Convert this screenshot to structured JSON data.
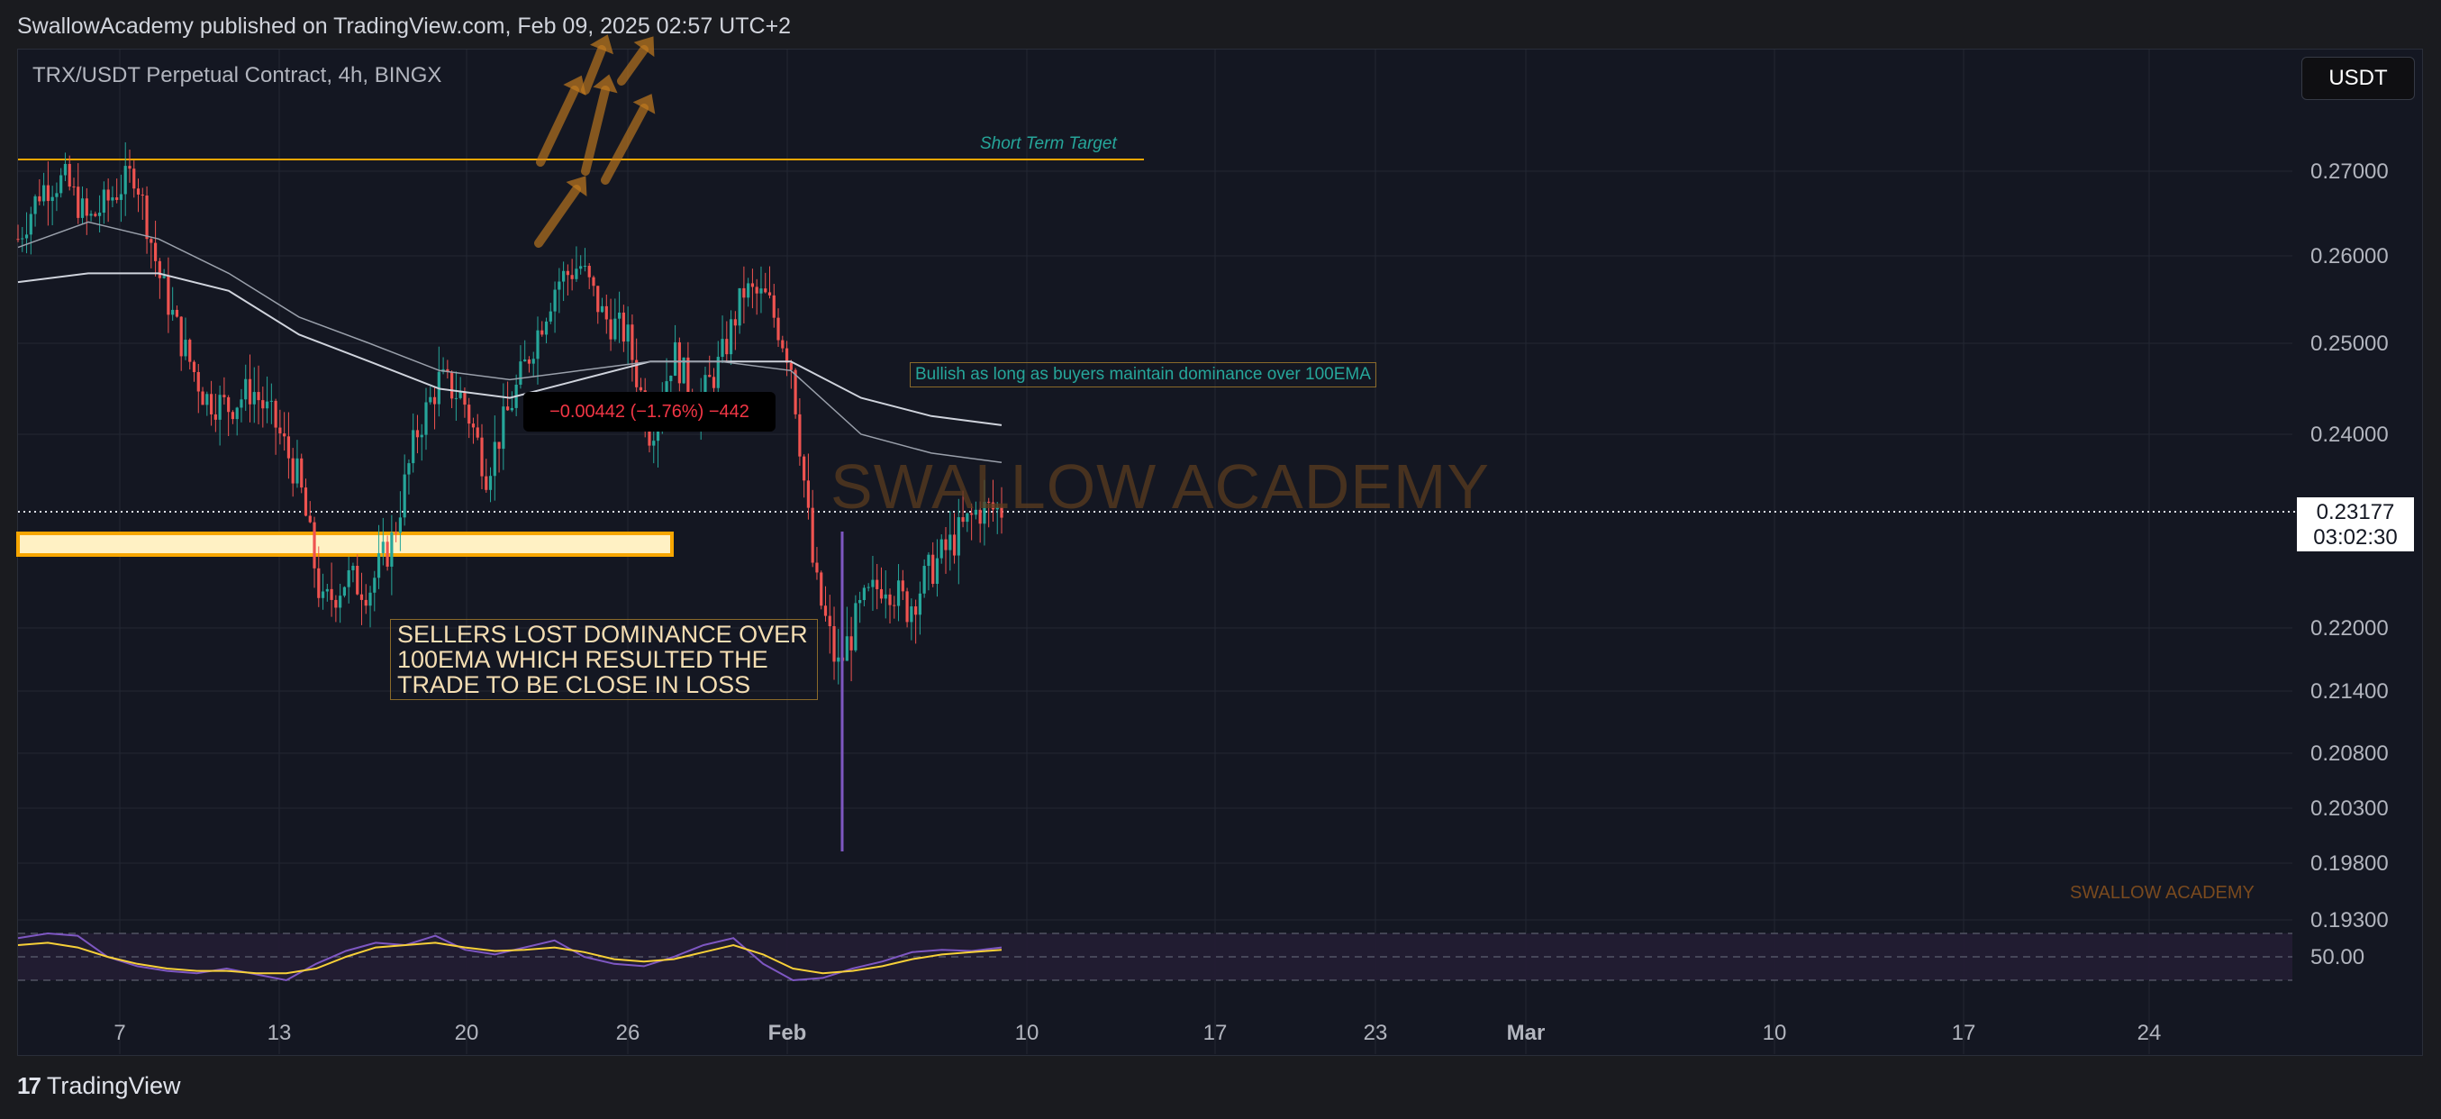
{
  "header": {
    "published": "SwallowAcademy published on TradingView.com, Feb 09, 2025 02:57 UTC+2"
  },
  "symbol": "TRX/USDT Perpetual Contract, 4h, BINGX",
  "currency_button": "USDT",
  "current_price": {
    "value": "0.23177",
    "countdown": "03:02:30"
  },
  "annotations": {
    "main_note": "SELLERS LOST DOMINANCE OVER 100EMA WHICH RESULTED THE TRADE TO BE CLOSE IN LOSS",
    "bullish_note": "Bullish as long as buyers maintain dominance over 100EMA",
    "target_label": "Short Term Target",
    "measure": "−0.00442 (−1.76%) −442"
  },
  "watermarks": {
    "big": "SWALLOW ACADEMY",
    "small": "SWALLOW ACADEMY"
  },
  "footer": {
    "brand": "TradingView"
  },
  "colors": {
    "up": "#26a69a",
    "down": "#ef5350",
    "level": "#f7a600",
    "rsi": "#7e57c2",
    "rsi_ma": "#f7d038",
    "ema": "#cfd3dc"
  },
  "chart_data": {
    "type": "candlestick",
    "title": "TRX/USDT Perpetual Contract, 4h, BINGX",
    "y_ticks": [
      0.27,
      0.26,
      0.25,
      0.24,
      0.23177,
      0.22,
      0.214,
      0.208,
      0.203,
      0.198,
      0.193
    ],
    "y_tick_labels": [
      "0.27000",
      "0.26000",
      "0.25000",
      "0.24000",
      "0.23177",
      "0.22000",
      "0.21400",
      "0.20800",
      "0.20300",
      "0.19800",
      "0.19300"
    ],
    "x_tick_labels": [
      "7",
      "13",
      "20",
      "26",
      "Feb",
      "10",
      "17",
      "23",
      "Mar",
      "10",
      "17",
      "24"
    ],
    "short_term_target": 0.2714,
    "support_zone": [
      0.2295,
      0.2275
    ],
    "last_price": 0.23177,
    "price_path": [
      [
        0,
        0.262
      ],
      [
        1,
        0.268
      ],
      [
        2,
        0.269
      ],
      [
        3,
        0.264
      ],
      [
        4,
        0.267
      ],
      [
        5,
        0.27
      ],
      [
        6,
        0.258
      ],
      [
        7,
        0.25
      ],
      [
        8,
        0.244
      ],
      [
        9,
        0.243
      ],
      [
        10,
        0.245
      ],
      [
        11,
        0.241
      ],
      [
        12,
        0.235
      ],
      [
        13,
        0.222
      ],
      [
        14,
        0.225
      ],
      [
        15,
        0.224
      ],
      [
        16,
        0.229
      ],
      [
        17,
        0.24
      ],
      [
        18,
        0.246
      ],
      [
        19,
        0.244
      ],
      [
        20,
        0.236
      ],
      [
        21,
        0.243
      ],
      [
        22,
        0.25
      ],
      [
        23,
        0.257
      ],
      [
        24,
        0.259
      ],
      [
        25,
        0.253
      ],
      [
        26,
        0.251
      ],
      [
        27,
        0.24
      ],
      [
        28,
        0.249
      ],
      [
        29,
        0.243
      ],
      [
        30,
        0.248
      ],
      [
        31,
        0.256
      ],
      [
        32,
        0.255
      ],
      [
        33,
        0.248
      ],
      [
        34,
        0.225
      ],
      [
        35,
        0.216
      ],
      [
        36,
        0.222
      ],
      [
        37,
        0.225
      ],
      [
        38,
        0.222
      ],
      [
        39,
        0.226
      ],
      [
        40,
        0.229
      ],
      [
        41,
        0.232
      ],
      [
        42,
        0.232
      ]
    ],
    "ema_100": [
      [
        0,
        0.257
      ],
      [
        3,
        0.258
      ],
      [
        6,
        0.258
      ],
      [
        9,
        0.256
      ],
      [
        12,
        0.251
      ],
      [
        15,
        0.248
      ],
      [
        18,
        0.245
      ],
      [
        21,
        0.244
      ],
      [
        24,
        0.246
      ],
      [
        27,
        0.248
      ],
      [
        30,
        0.248
      ],
      [
        33,
        0.248
      ],
      [
        36,
        0.244
      ],
      [
        39,
        0.242
      ],
      [
        42,
        0.241
      ]
    ],
    "ema_200": [
      [
        0,
        0.261
      ],
      [
        3,
        0.264
      ],
      [
        6,
        0.262
      ],
      [
        9,
        0.258
      ],
      [
        12,
        0.253
      ],
      [
        15,
        0.25
      ],
      [
        18,
        0.247
      ],
      [
        21,
        0.246
      ],
      [
        24,
        0.247
      ],
      [
        27,
        0.248
      ],
      [
        30,
        0.248
      ],
      [
        33,
        0.247
      ],
      [
        36,
        0.24
      ],
      [
        39,
        0.238
      ],
      [
        42,
        0.237
      ]
    ],
    "rsi": {
      "level_label": "50.00",
      "values": [
        66,
        70,
        68,
        50,
        42,
        38,
        36,
        40,
        35,
        30,
        44,
        55,
        62,
        60,
        68,
        56,
        52,
        58,
        64,
        50,
        44,
        42,
        50,
        60,
        66,
        44,
        30,
        32,
        40,
        46,
        54,
        56,
        55,
        58
      ],
      "ma": [
        60,
        62,
        58,
        50,
        44,
        40,
        38,
        38,
        36,
        36,
        40,
        50,
        58,
        60,
        62,
        58,
        55,
        56,
        58,
        54,
        48,
        46,
        48,
        54,
        60,
        52,
        40,
        36,
        38,
        42,
        48,
        52,
        54,
        56
      ]
    }
  }
}
